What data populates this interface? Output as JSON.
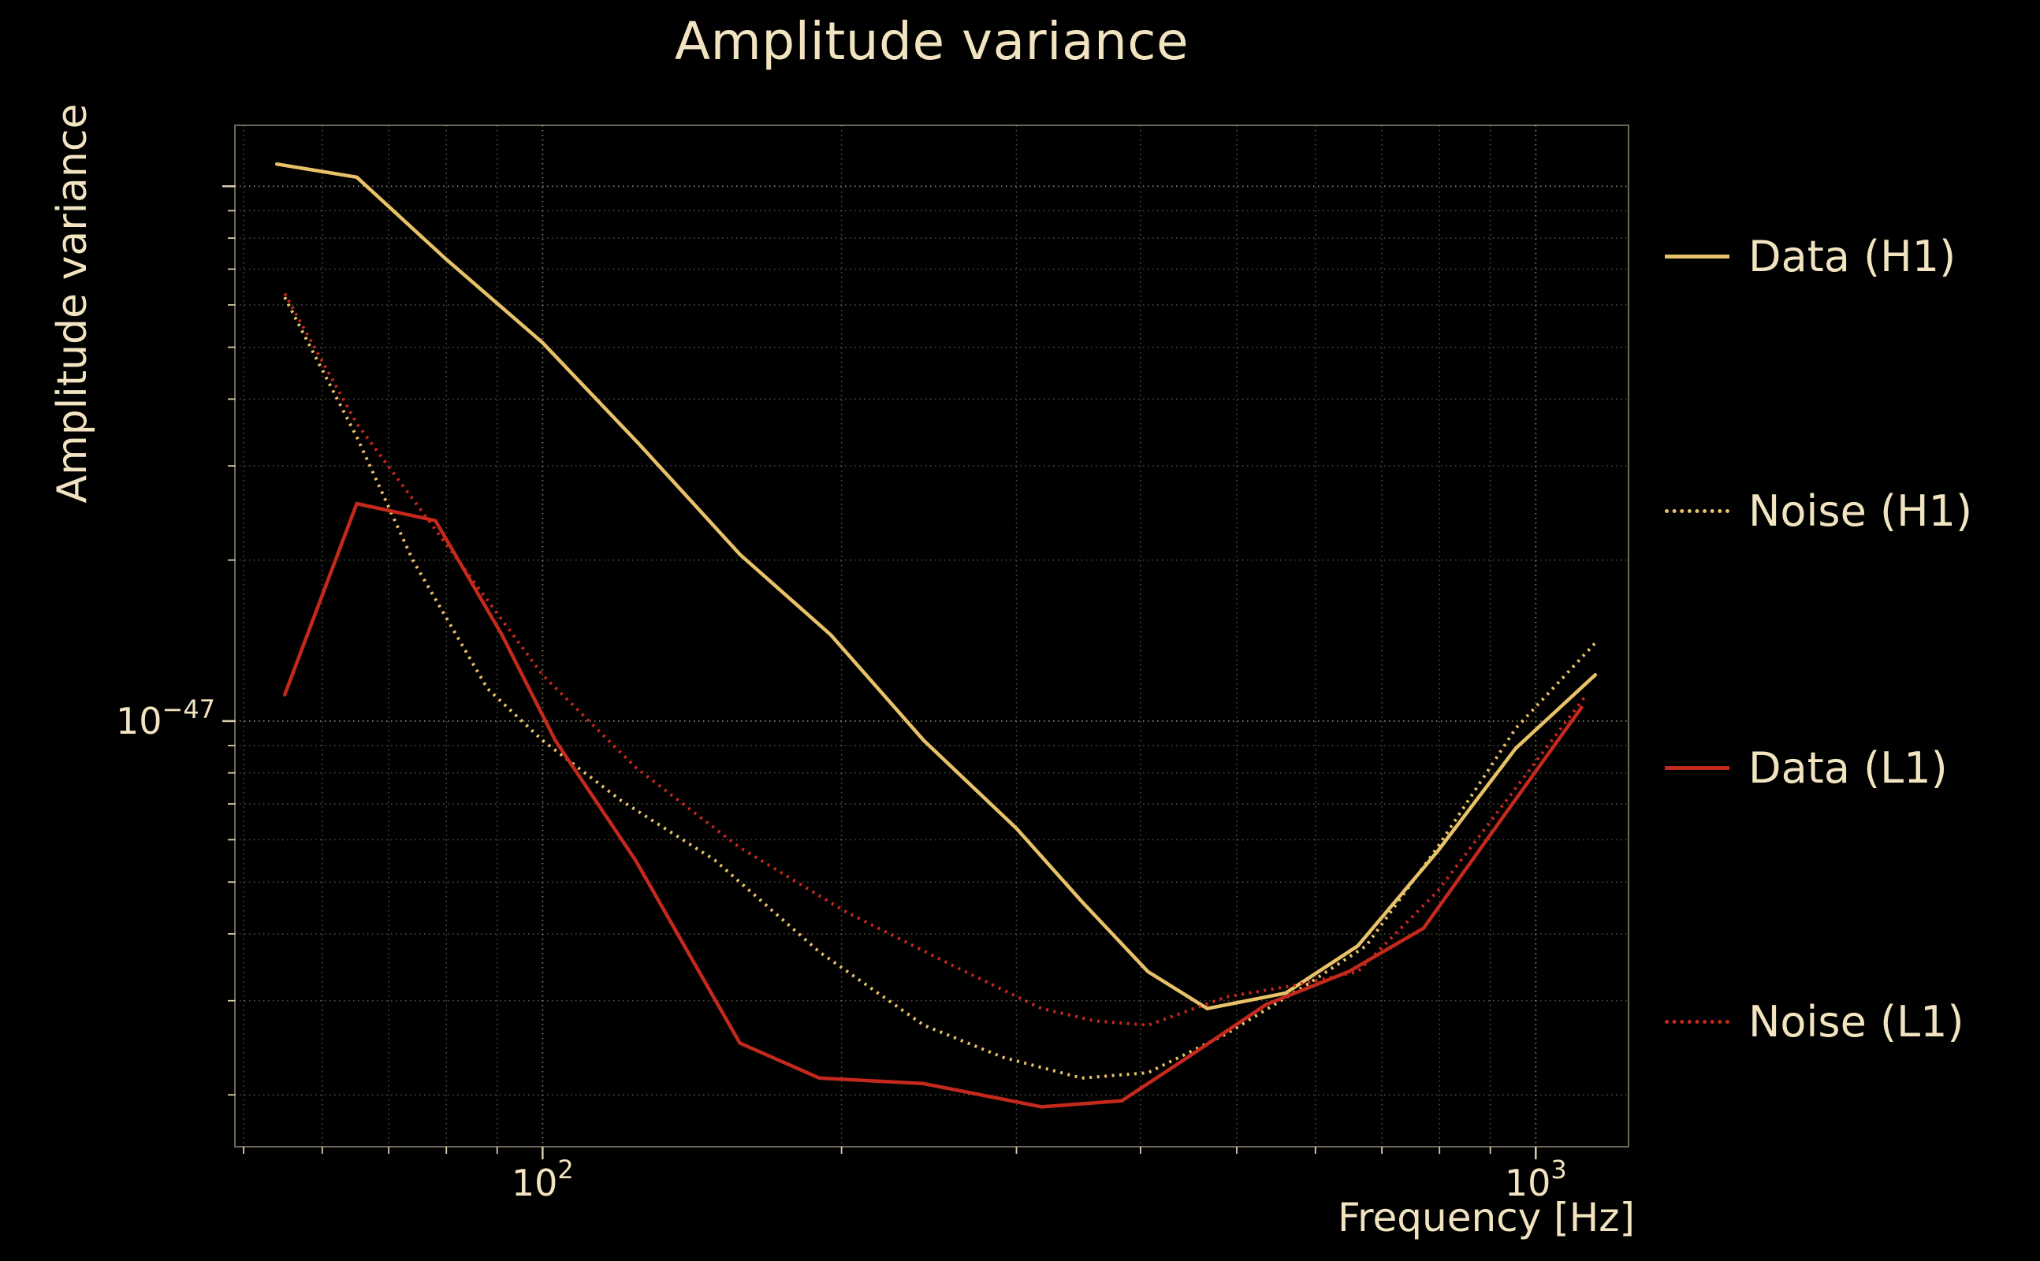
{
  "figure": {
    "background": "#000000",
    "text_color": "#f2e4c0"
  },
  "chart_data": {
    "type": "line",
    "title": "Amplitude variance",
    "xlabel": "Frequency [Hz]",
    "ylabel": "Amplitude variance",
    "xscale": "log",
    "yscale": "log",
    "xlim": [
      49,
      1240
    ],
    "ylim": [
      1.6e-48,
      1.3e-46
    ],
    "grid": "both axes, dotted minor and major gridlines",
    "legend_position": "outside right",
    "x_ticks": [
      {
        "f": 100,
        "base": "10",
        "exp": "2"
      },
      {
        "f": 1000,
        "base": "10",
        "exp": "3"
      }
    ],
    "y_ticks": [
      {
        "v": 1e-47,
        "base": "10",
        "exp": "−47"
      }
    ],
    "series": [
      {
        "name": "Data (H1)",
        "color": "#e8c268",
        "style": "solid",
        "points": [
          [
            54,
            1.1e-46
          ],
          [
            65,
            1.04e-46
          ],
          [
            80,
            7.3e-47
          ],
          [
            100,
            5.1e-47
          ],
          [
            125,
            3.3e-47
          ],
          [
            158,
            2.05e-47
          ],
          [
            195,
            1.45e-47
          ],
          [
            242,
            9.2e-48
          ],
          [
            300,
            6.3e-48
          ],
          [
            349,
            4.6e-48
          ],
          [
            407,
            3.4e-48
          ],
          [
            467,
            2.9e-48
          ],
          [
            560,
            3.1e-48
          ],
          [
            662,
            3.8e-48
          ],
          [
            796,
            5.7e-48
          ],
          [
            955,
            8.9e-48
          ],
          [
            1148,
            1.22e-47
          ]
        ]
      },
      {
        "name": "Noise (H1)",
        "color": "#e8c268",
        "style": "dotted",
        "points": [
          [
            55,
            6.2e-47
          ],
          [
            65,
            3.4e-47
          ],
          [
            74,
            2e-47
          ],
          [
            88,
            1.15e-47
          ],
          [
            100,
            9.2e-48
          ],
          [
            120,
            7.1e-48
          ],
          [
            149,
            5.5e-48
          ],
          [
            190,
            3.7e-48
          ],
          [
            242,
            2.7e-48
          ],
          [
            291,
            2.35e-48
          ],
          [
            349,
            2.15e-48
          ],
          [
            407,
            2.2e-48
          ],
          [
            488,
            2.6e-48
          ],
          [
            586,
            3.2e-48
          ],
          [
            675,
            3.8e-48
          ],
          [
            796,
            5.8e-48
          ],
          [
            955,
            9.7e-48
          ],
          [
            1148,
            1.4e-47
          ]
        ]
      },
      {
        "name": "Data (L1)",
        "color": "#c5291d",
        "style": "solid",
        "points": [
          [
            55,
            1.12e-47
          ],
          [
            65,
            2.55e-47
          ],
          [
            78,
            2.37e-47
          ],
          [
            91,
            1.45e-47
          ],
          [
            103,
            9.2e-48
          ],
          [
            124,
            5.5e-48
          ],
          [
            158,
            2.5e-48
          ],
          [
            190,
            2.15e-48
          ],
          [
            242,
            2.1e-48
          ],
          [
            318,
            1.9e-48
          ],
          [
            383,
            1.95e-48
          ],
          [
            446,
            2.35e-48
          ],
          [
            535,
            2.95e-48
          ],
          [
            648,
            3.4e-48
          ],
          [
            771,
            4.1e-48
          ],
          [
            942,
            6.9e-48
          ],
          [
            1112,
            1.06e-47
          ]
        ]
      },
      {
        "name": "Noise (L1)",
        "color": "#c5291d",
        "style": "dotted",
        "points": [
          [
            55,
            6.3e-47
          ],
          [
            65,
            3.6e-47
          ],
          [
            78,
            2.28e-47
          ],
          [
            100,
            1.22e-47
          ],
          [
            124,
            8.2e-48
          ],
          [
            158,
            5.8e-48
          ],
          [
            202,
            4.4e-48
          ],
          [
            258,
            3.5e-48
          ],
          [
            318,
            2.9e-48
          ],
          [
            360,
            2.75e-48
          ],
          [
            407,
            2.7e-48
          ],
          [
            488,
            3.05e-48
          ],
          [
            569,
            3.2e-48
          ],
          [
            662,
            3.4e-48
          ],
          [
            796,
            4.8e-48
          ],
          [
            955,
            7.5e-48
          ],
          [
            1125,
            1.12e-47
          ]
        ]
      }
    ]
  }
}
